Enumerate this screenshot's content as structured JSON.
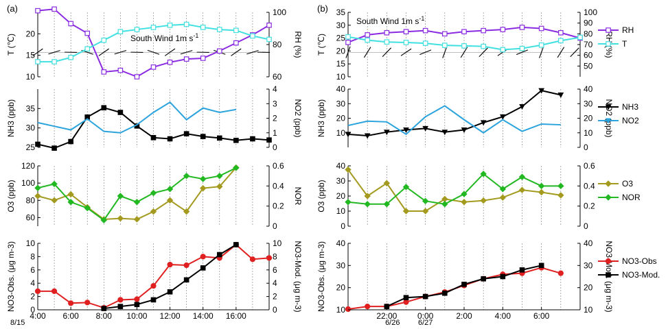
{
  "chart_data": [
    {
      "panel_label": "(a)",
      "x": [
        4,
        5,
        6,
        7,
        8,
        9,
        10,
        11,
        12,
        13,
        14,
        15,
        16,
        17,
        18
      ],
      "x_range": [
        4,
        18
      ],
      "xticks": [
        4,
        6,
        8,
        10,
        12,
        14,
        16
      ],
      "xticklabels": [
        "4:00",
        "6:00",
        "8:00",
        "10:00",
        "12:00",
        "14:00",
        "16:00"
      ],
      "date_label": "8/15",
      "wind_note": "South Wind 1m s",
      "wind_note_sup": "-1",
      "subplots": [
        {
          "type": "line",
          "left_axis": {
            "label": "T (℃)",
            "range": [
              10,
              25
            ],
            "ticks": [
              10,
              15,
              20
            ]
          },
          "right_axis": {
            "label": "RH (%)",
            "range": [
              60,
              100
            ],
            "ticks": [
              60,
              80,
              100
            ]
          },
          "legend": [],
          "series": [
            {
              "name": "RH",
              "axis": "right",
              "color": "#8a2be2",
              "marker": "square",
              "values": [
                101,
                102,
                93,
                87,
                63,
                64,
                60,
                66,
                69,
                71,
                71.5,
                76,
                81,
                86,
                92
              ]
            },
            {
              "name": "T",
              "axis": "left",
              "color": "#40e0e0",
              "marker": "square",
              "values": [
                13.5,
                13.5,
                14.5,
                16.5,
                18.5,
                20.5,
                21,
                21.5,
                22,
                22.2,
                21.5,
                21,
                20.8,
                19.5,
                18.7
              ]
            }
          ],
          "wind_barbs": true
        },
        {
          "type": "line",
          "left_axis": {
            "label": "NH3 (ppb)",
            "range": [
              25,
              40
            ],
            "ticks": [
              25,
              30,
              35
            ]
          },
          "right_axis": {
            "label": "NO2 (ppb)",
            "range": [
              0,
              4
            ],
            "ticks": [
              0,
              1,
              2,
              3,
              4
            ]
          },
          "legend": [],
          "series": [
            {
              "name": "NH3",
              "axis": "left",
              "color": "#000000",
              "marker": "square",
              "values": [
                25.8,
                24.8,
                26.5,
                32.8,
                35.2,
                34,
                30.5,
                27.5,
                27.2,
                28.5,
                27.8,
                27.4,
                26.8,
                27.2,
                26.9
              ]
            },
            {
              "name": "NO2",
              "axis": "right",
              "color": "#2ba3dc",
              "marker": "none",
              "values": [
                1.7,
                1.45,
                1.2,
                1.95,
                1.1,
                1.0,
                1.55,
                2.4,
                3.1,
                1.9,
                2.7,
                2.4,
                2.6,
                null,
                null
              ]
            }
          ]
        },
        {
          "type": "line",
          "left_axis": {
            "label": "O3 (ppb)",
            "range": [
              50,
              120
            ],
            "ticks": [
              60,
              80,
              100,
              120
            ]
          },
          "right_axis": {
            "label": "NOR",
            "range": [
              0,
              0.6
            ],
            "ticks": [
              0.0,
              0.2,
              0.4,
              0.6
            ]
          },
          "legend": [],
          "series": [
            {
              "name": "O3",
              "axis": "left",
              "color": "#a39a1f",
              "marker": "diamond",
              "values": [
                85,
                80,
                87,
                72,
                58,
                59,
                58,
                67,
                80,
                67,
                94,
                96,
                118,
                null,
                null
              ]
            },
            {
              "name": "NOR",
              "axis": "right",
              "color": "#22b822",
              "marker": "diamond",
              "values": [
                0.38,
                0.42,
                0.24,
                0.18,
                0.06,
                0.3,
                0.24,
                0.33,
                0.37,
                0.5,
                0.47,
                0.5,
                0.58,
                null,
                null
              ]
            }
          ]
        },
        {
          "type": "line",
          "left_axis": {
            "label": "NO3-Obs. (μg m-3)",
            "range": [
              0,
              10
            ],
            "ticks": [
              0,
              2,
              4,
              6,
              8,
              10
            ]
          },
          "right_axis": {
            "label": "NO3-Mod. (μg m-3)",
            "range": [
              0,
              10
            ],
            "ticks": [
              0,
              2,
              4,
              6,
              8,
              10
            ]
          },
          "legend": [],
          "series": [
            {
              "name": "NO3-Obs",
              "axis": "left",
              "color": "#e02020",
              "marker": "circle",
              "values": [
                2.8,
                2.8,
                1.0,
                1.1,
                0.3,
                1.5,
                1.6,
                3.6,
                6.8,
                6.7,
                8.0,
                7.8,
                9.8,
                7.6,
                7.8
              ]
            },
            {
              "name": "NO3-Mod.",
              "axis": "right",
              "color": "#000000",
              "marker": "square",
              "values": [
                null,
                null,
                null,
                null,
                0.2,
                0.5,
                0.8,
                1.5,
                2.7,
                4.5,
                6.3,
                8.3,
                9.8,
                null,
                null
              ]
            }
          ]
        }
      ]
    },
    {
      "panel_label": "(b)",
      "x": [
        20,
        21,
        22,
        23,
        24,
        25,
        26,
        27,
        28,
        29,
        30,
        31,
        32
      ],
      "x_range": [
        20,
        32
      ],
      "xticks": [
        22,
        24,
        26,
        28,
        30
      ],
      "xticklabels": [
        "22:00",
        "0:00",
        "2:00",
        "4:00",
        "6:00"
      ],
      "date_labels": [
        "6/26",
        "6/27"
      ],
      "wind_note": "South Wind 1m s",
      "wind_note_sup": "-1",
      "subplots": [
        {
          "type": "line",
          "left_axis": {
            "label": "T (℃)",
            "range": [
              10,
              35
            ],
            "ticks": [
              10,
              15,
              20,
              25,
              30,
              35
            ]
          },
          "right_axis": {
            "label": "RH (%)",
            "range": [
              40,
              100
            ],
            "ticks": [
              50,
              60,
              70,
              80,
              90,
              100
            ]
          },
          "legend": [
            "RH",
            "T"
          ],
          "series": [
            {
              "name": "RH",
              "axis": "right",
              "color": "#8a2be2",
              "marker": "square",
              "values": [
                72,
                79,
                81,
                82,
                83,
                80,
                82,
                83,
                84,
                86,
                85,
                81,
                76
              ]
            },
            {
              "name": "T",
              "axis": "left",
              "color": "#40e0e0",
              "marker": "square",
              "values": [
                25.5,
                24.2,
                23.5,
                23.3,
                23.0,
                22.2,
                22.0,
                21.8,
                20.5,
                21.0,
                22.3,
                24.0,
                25.3
              ]
            }
          ],
          "wind_barbs": true
        },
        {
          "type": "line",
          "left_axis": {
            "label": "NH3 (ppb)",
            "range": [
              0,
              40
            ],
            "ticks": [
              10,
              20,
              30,
              40
            ]
          },
          "right_axis": {
            "label": "NO2 (ppb)",
            "range": [
              0,
              40
            ],
            "ticks": [
              0,
              10,
              20,
              30,
              40
            ]
          },
          "legend": [
            "NH3",
            "NO2"
          ],
          "series": [
            {
              "name": "NH3",
              "axis": "left",
              "color": "#000000",
              "marker": "triangle",
              "values": [
                9,
                8,
                10.5,
                12,
                13,
                10.5,
                12,
                17,
                21,
                28,
                39,
                36,
                null
              ]
            },
            {
              "name": "NO2",
              "axis": "right",
              "color": "#2ba3dc",
              "marker": "none",
              "values": [
                15,
                18,
                17.5,
                9,
                21,
                28.5,
                19,
                10,
                19,
                11,
                16,
                15.5,
                null
              ]
            }
          ]
        },
        {
          "type": "line",
          "left_axis": {
            "label": "O3 (ppb)",
            "range": [
              0,
              40
            ],
            "ticks": [
              0,
              10,
              20,
              30,
              40
            ]
          },
          "right_axis": {
            "label": "",
            "range": [
              0,
              0.6
            ],
            "ticks": [
              0.0,
              0.2,
              0.4,
              0.6
            ]
          },
          "legend": [
            "O3",
            "NOR"
          ],
          "series": [
            {
              "name": "O3",
              "axis": "left",
              "color": "#a39a1f",
              "marker": "diamond",
              "values": [
                37.5,
                20,
                28.5,
                10,
                10,
                18,
                16,
                17,
                19,
                24,
                22.5,
                20.5,
                null
              ]
            },
            {
              "name": "NOR",
              "axis": "right",
              "color": "#22b822",
              "marker": "diamond",
              "values": [
                0.24,
                0.22,
                0.22,
                0.39,
                0.25,
                0.22,
                0.32,
                0.52,
                0.37,
                0.49,
                0.4,
                0.4,
                null
              ]
            }
          ]
        },
        {
          "type": "line",
          "left_axis": {
            "label": "NO3-Obs. (μg m-3)",
            "range": [
              10,
              40
            ],
            "ticks": [
              10,
              20,
              30,
              40
            ]
          },
          "right_axis": {
            "label": "NO3-Mod. (μg m-3)",
            "range": [
              10,
              40
            ],
            "ticks": [
              10,
              20,
              30,
              40
            ]
          },
          "legend": [
            "NO3-Obs",
            "NO3-Mod."
          ],
          "series": [
            {
              "name": "NO3-Obs",
              "axis": "left",
              "color": "#e02020",
              "marker": "circle",
              "values": [
                10.3,
                11.5,
                11.5,
                13.5,
                16,
                18,
                21,
                24,
                26,
                26.5,
                29,
                26.5,
                null
              ]
            },
            {
              "name": "NO3-Mod.",
              "axis": "right",
              "color": "#000000",
              "marker": "square",
              "values": [
                null,
                null,
                11.5,
                15.5,
                16,
                17.5,
                21.5,
                24,
                25,
                28,
                30,
                null,
                null
              ]
            }
          ]
        }
      ]
    }
  ],
  "colors": {
    "RH": "#8a2be2",
    "T": "#40e0e0",
    "NH3": "#000000",
    "NO2": "#2ba3dc",
    "O3": "#a39a1f",
    "NOR": "#22b822",
    "NO3-Obs": "#e02020",
    "NO3-Mod.": "#000000"
  }
}
